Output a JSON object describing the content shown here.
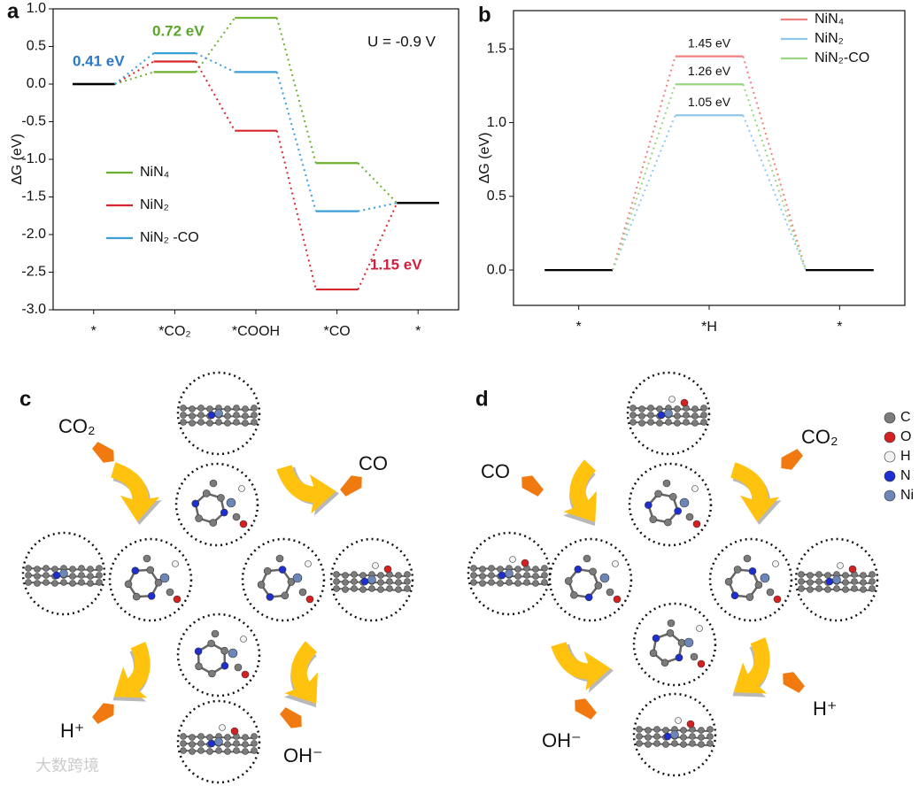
{
  "chart_data": [
    {
      "type": "step",
      "panel": "a",
      "ylabel": "ΔG (eV)",
      "categories": [
        "*",
        "*CO₂",
        "*COOH",
        "*CO",
        "*"
      ],
      "series": [
        {
          "name": "NiN₄",
          "color": "#6bb02e",
          "values": [
            0,
            0.16,
            0.88,
            -1.05,
            -1.58
          ]
        },
        {
          "name": "NiN₂",
          "color": "#d9262b",
          "values": [
            0,
            0.3,
            -0.62,
            -2.73,
            -1.58
          ]
        },
        {
          "name": "NiN₂ -CO",
          "color": "#3a9fd6",
          "values": [
            0,
            0.41,
            0.16,
            -1.69,
            -1.58
          ]
        }
      ],
      "annotations": [
        {
          "text": "0.41 eV",
          "color": "#2a78c8"
        },
        {
          "text": "0.72 eV",
          "color": "#5aa52a"
        },
        {
          "text": "U = -0.9 V",
          "color": "#111111"
        },
        {
          "text": "1.15 eV",
          "color": "#d21f3c"
        }
      ],
      "ylim": [
        -3,
        1
      ],
      "yticks": [
        {
          "value": 1,
          "label": "1.0"
        },
        0.5,
        {
          "value": 0,
          "label": "0.0"
        },
        -0.5,
        {
          "value": -1,
          "label": "-1.0"
        },
        -1.5,
        {
          "value": -2,
          "label": "-2.0"
        },
        -2.5,
        {
          "value": -3,
          "label": "-3.0"
        }
      ],
      "legend": "center left"
    },
    {
      "type": "step",
      "panel": "b",
      "ylabel": "ΔG (eV)",
      "categories": [
        "*",
        "*H",
        "*"
      ],
      "series": [
        {
          "name": "NiN₄",
          "color": "#f08080",
          "values": [
            0,
            1.45,
            0
          ],
          "value_labels": [
            null,
            "1.45 eV",
            null
          ]
        },
        {
          "name": "NiN₂",
          "color": "#8ec8ea",
          "values": [
            0,
            1.05,
            0
          ],
          "value_labels": [
            null,
            "1.05 eV",
            null
          ]
        },
        {
          "name": "NiN₂-CO",
          "color": "#9ad67f",
          "values": [
            0,
            1.26,
            0
          ],
          "value_labels": [
            null,
            "1.26 eV",
            null
          ]
        }
      ],
      "ylim": [
        -0.24,
        1.76
      ],
      "yticks": [
        {
          "value": 0,
          "label": "0.0"
        },
        0.5,
        {
          "value": 1,
          "label": "1.0"
        },
        1.5
      ],
      "legend": "upper right"
    }
  ],
  "panels": {
    "c": {
      "label": "c",
      "co2": "CO₂",
      "co": "CO",
      "h": "H⁺",
      "oh": "OH⁻"
    },
    "d": {
      "label": "d",
      "co2": "CO₂",
      "co": "CO",
      "h": "H⁺",
      "oh": "OH⁻",
      "atoms": [
        "C",
        "O",
        "H",
        "N",
        "Ni"
      ]
    }
  },
  "watermark": "大数跨境"
}
